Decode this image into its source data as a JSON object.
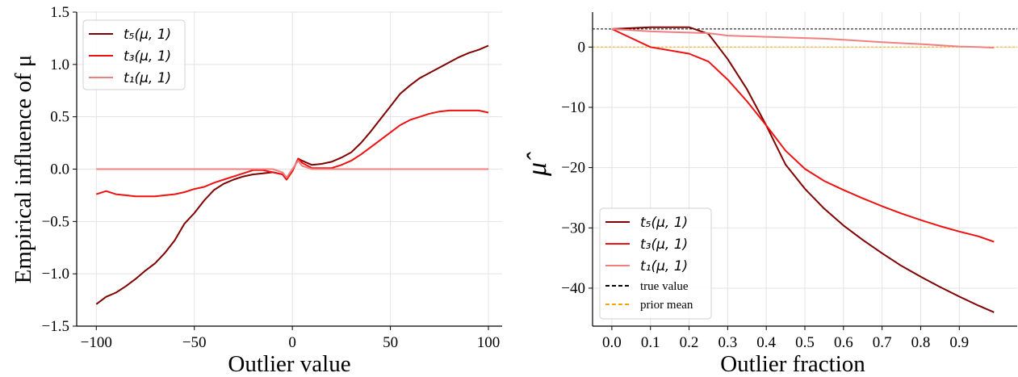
{
  "chart_data": [
    {
      "type": "line",
      "xlabel": "Outlier value",
      "ylabel": "Empirical influence of μ",
      "xlim": [
        -110,
        107
      ],
      "ylim": [
        -1.5,
        1.5
      ],
      "xticks": [
        -100,
        -50,
        0,
        50,
        100
      ],
      "xtick_labels": [
        "−100",
        "−50",
        "0",
        "50",
        "100"
      ],
      "yticks": [
        -1.5,
        -1.0,
        -0.5,
        0.0,
        0.5,
        1.0,
        1.5
      ],
      "ytick_labels": [
        "−1.5",
        "−1.0",
        "−0.5",
        "0.0",
        "0.5",
        "1.0",
        "1.5"
      ],
      "grid": true,
      "legend_position": "top-left",
      "x": [
        -100,
        -95,
        -90,
        -85,
        -80,
        -75,
        -70,
        -65,
        -60,
        -55,
        -50,
        -45,
        -40,
        -35,
        -30,
        -25,
        -20,
        -15,
        -10,
        -5,
        -3,
        0,
        3,
        5,
        10,
        15,
        20,
        25,
        30,
        35,
        40,
        45,
        50,
        55,
        60,
        65,
        70,
        75,
        80,
        85,
        90,
        95,
        100
      ],
      "series": [
        {
          "name": "t₅(μ, 1)",
          "color": "#800000",
          "values": [
            -1.29,
            -1.22,
            -1.18,
            -1.12,
            -1.05,
            -0.97,
            -0.9,
            -0.8,
            -0.68,
            -0.52,
            -0.42,
            -0.3,
            -0.2,
            -0.14,
            -0.1,
            -0.07,
            -0.05,
            -0.04,
            -0.03,
            -0.05,
            -0.1,
            -0.02,
            0.1,
            0.08,
            0.04,
            0.05,
            0.07,
            0.11,
            0.16,
            0.25,
            0.36,
            0.48,
            0.6,
            0.72,
            0.8,
            0.87,
            0.92,
            0.97,
            1.02,
            1.07,
            1.11,
            1.14,
            1.18
          ]
        },
        {
          "name": "t₃(μ, 1)",
          "color": "#ee1111",
          "values": [
            -0.24,
            -0.21,
            -0.24,
            -0.25,
            -0.26,
            -0.26,
            -0.26,
            -0.25,
            -0.24,
            -0.22,
            -0.19,
            -0.17,
            -0.13,
            -0.1,
            -0.07,
            -0.04,
            -0.01,
            -0.01,
            -0.03,
            -0.05,
            -0.1,
            -0.02,
            0.1,
            0.06,
            0.01,
            0.01,
            0.01,
            0.04,
            0.08,
            0.14,
            0.21,
            0.28,
            0.35,
            0.42,
            0.47,
            0.5,
            0.53,
            0.55,
            0.56,
            0.56,
            0.56,
            0.56,
            0.54
          ]
        },
        {
          "name": "t₁(μ, 1)",
          "color": "#f08080",
          "values": [
            0,
            0,
            0,
            0,
            0,
            0,
            0,
            0,
            0,
            0,
            0,
            0,
            0,
            0,
            0,
            0,
            0,
            0,
            0,
            -0.03,
            -0.08,
            0,
            0.08,
            0.03,
            0,
            0,
            0,
            0,
            0,
            0,
            0,
            0,
            0,
            0,
            0,
            0,
            0,
            0,
            0,
            0,
            0,
            0,
            0
          ]
        }
      ]
    },
    {
      "type": "line",
      "xlabel": "Outlier fraction",
      "ylabel": "μ̂",
      "xlim": [
        -0.05,
        1.05
      ],
      "ylim": [
        -46.3,
        5.8
      ],
      "xticks": [
        0.0,
        0.1,
        0.2,
        0.3,
        0.4,
        0.5,
        0.6,
        0.7,
        0.8,
        0.9
      ],
      "xtick_labels": [
        "0.0",
        "0.1",
        "0.2",
        "0.3",
        "0.4",
        "0.5",
        "0.6",
        "0.7",
        "0.8",
        "0.9"
      ],
      "yticks": [
        0,
        -10,
        -20,
        -30,
        -40
      ],
      "ytick_labels": [
        "0",
        "−10",
        "−20",
        "−30",
        "−40"
      ],
      "grid": true,
      "legend_position": "bottom-left",
      "x": [
        0,
        0.1,
        0.2,
        0.25,
        0.3,
        0.35,
        0.4,
        0.45,
        0.5,
        0.55,
        0.6,
        0.65,
        0.7,
        0.75,
        0.8,
        0.85,
        0.9,
        0.95,
        0.99
      ],
      "series": [
        {
          "name": "t₅(μ, 1)",
          "color": "#800000",
          "values": [
            3,
            3.3,
            3.3,
            2.2,
            -2,
            -7,
            -13,
            -19.5,
            -23.5,
            -26.8,
            -29.6,
            -32,
            -34.2,
            -36.3,
            -38.1,
            -39.8,
            -41.4,
            -42.9,
            -44
          ]
        },
        {
          "name": "t₃(μ, 1)",
          "color": "#ee1111",
          "values": [
            3,
            0,
            -1.1,
            -2.4,
            -5.4,
            -9,
            -13,
            -17.2,
            -20.2,
            -22.2,
            -23.7,
            -25.1,
            -26.4,
            -27.6,
            -28.7,
            -29.7,
            -30.6,
            -31.4,
            -32.3
          ]
        },
        {
          "name": "t₁(μ, 1)",
          "color": "#f08080",
          "values": [
            3,
            2.6,
            2.4,
            2.3,
            1.9,
            1.8,
            1.7,
            1.6,
            1.5,
            1.4,
            1.2,
            1.0,
            0.8,
            0.65,
            0.5,
            0.3,
            0.1,
            0,
            -0.1
          ]
        }
      ],
      "hlines": [
        {
          "name": "true value",
          "y": 3,
          "color": "#000000",
          "dashed": true
        },
        {
          "name": "prior mean",
          "y": 0,
          "color": "#ffa500",
          "dashed": true
        }
      ]
    }
  ]
}
